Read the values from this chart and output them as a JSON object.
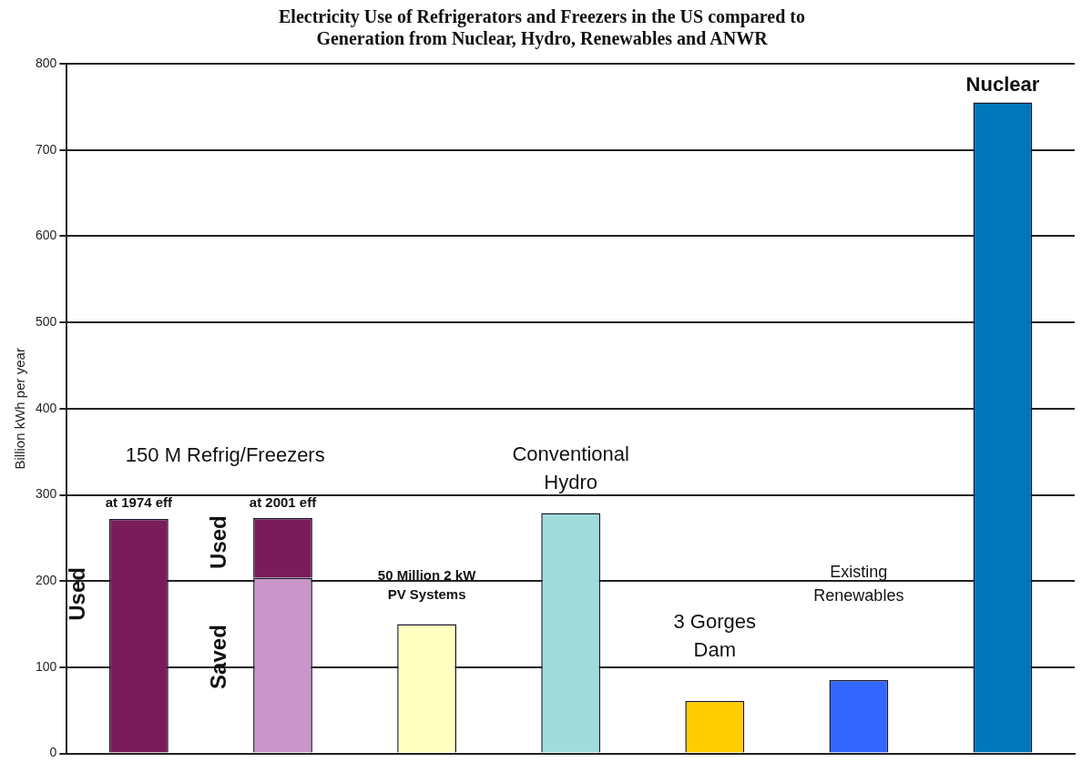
{
  "chart_data": {
    "type": "bar",
    "title": "Electricity Use of Refrigerators and Freezers in the US compared to\nGeneration from Nuclear, Hydro, Renewables and ANWR",
    "ylabel": "Billion kWh per year",
    "categories": [
      null,
      null,
      null,
      null,
      null,
      null,
      null
    ],
    "stacked": true,
    "series": [
      {
        "values": [
          272,
          204,
          150,
          279,
          61,
          85,
          755
        ],
        "colors": [
          "#7b1c5a",
          "#c896c8",
          "#ffffc0",
          "#a0dcdc",
          "#ffcc00",
          "#3366ff",
          "#0077bb"
        ]
      },
      {
        "values": [
          null,
          69,
          null,
          null,
          null,
          null,
          null
        ],
        "color": "#7b1c5a"
      }
    ],
    "ylim": [
      0,
      800
    ],
    "yticks": [
      0,
      100,
      200,
      300,
      400,
      500,
      600,
      700,
      800
    ],
    "grid": "y",
    "legend": false,
    "annotations": [
      "150 M Refrig/Freezers",
      "at 1974 eff",
      "at 2001 eff",
      "Used",
      "Used",
      "Saved",
      "50 Million 2 kW\nPV Systems",
      "Conventional\nHydro",
      "3 Gorges\nDam",
      "Existing\nRenewables",
      "Nuclear"
    ]
  }
}
